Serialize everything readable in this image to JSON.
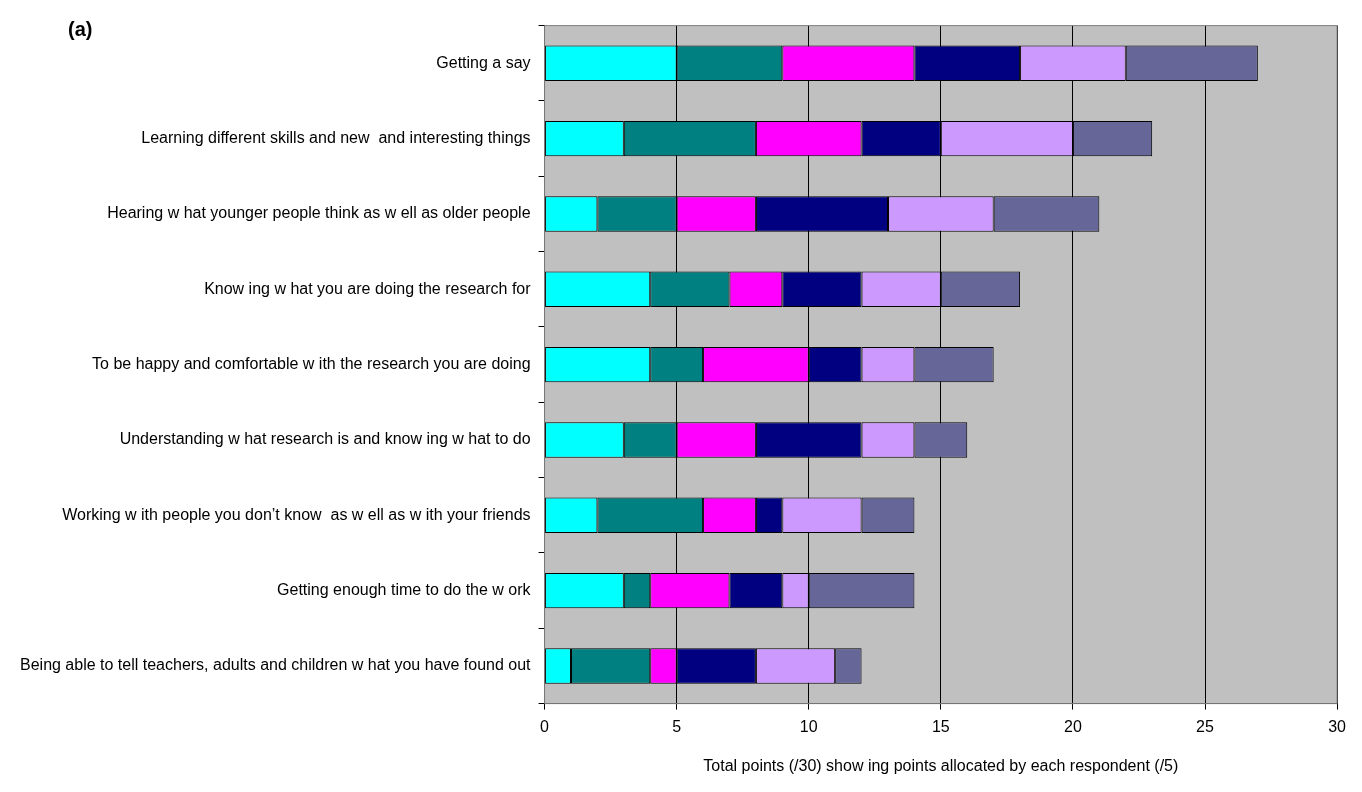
{
  "chart_data": {
    "type": "bar",
    "orientation": "horizontal",
    "stacked": true,
    "title": "(a)",
    "xlabel": "Total points (/30) show ing points allocated by each respondent (/5)",
    "categories": [
      "Getting a say",
      "Learning different skills and new  and interesting things",
      "Hearing w hat younger people think as w ell as older people",
      "Know ing w hat you are doing the research for",
      "To be happy and comfortable w ith the research you are doing",
      "Understanding w hat research is and know ing w hat to do",
      "Working w ith people you don’t know  as w ell as w ith your friends",
      "Getting enough time to do the w ork",
      "Being able to tell teachers, adults and children w hat you have found out"
    ],
    "series": [
      {
        "color": "#00ffff",
        "values": [
          5,
          3,
          2,
          4,
          4,
          3,
          2,
          3,
          1
        ]
      },
      {
        "color": "#008080",
        "values": [
          4,
          5,
          3,
          3,
          2,
          2,
          4,
          1,
          3
        ]
      },
      {
        "color": "#ff00ff",
        "values": [
          5,
          4,
          3,
          2,
          4,
          3,
          2,
          3,
          1
        ]
      },
      {
        "color": "#000080",
        "values": [
          4,
          3,
          5,
          3,
          2,
          4,
          1,
          2,
          3
        ]
      },
      {
        "color": "#cc99ff",
        "values": [
          4,
          5,
          4,
          3,
          2,
          2,
          3,
          1,
          3
        ]
      },
      {
        "color": "#666699",
        "values": [
          5,
          3,
          4,
          3,
          3,
          2,
          2,
          4,
          1
        ]
      }
    ],
    "xlim": [
      0,
      30
    ],
    "xticks": [
      0,
      5,
      10,
      15,
      20,
      25,
      30
    ],
    "grid": "x",
    "legend": false
  }
}
